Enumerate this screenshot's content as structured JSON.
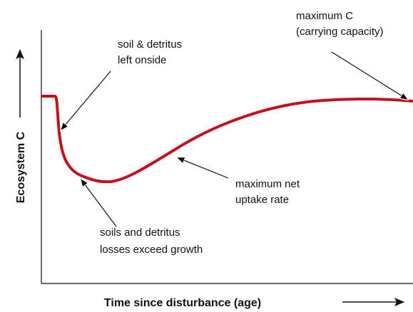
{
  "annotations": [
    {
      "lines": [
        "soil & detritus",
        "left onside"
      ]
    },
    {
      "lines": [
        "maximum C",
        "(carrying capacity)"
      ]
    },
    {
      "lines": [
        "maximum net",
        "uptake rate"
      ]
    },
    {
      "lines": [
        "soils and detritus",
        "losses exceed growth"
      ]
    }
  ],
  "y_axis_label": "Ecosystem C",
  "x_axis_label": "Time since disturbance (age)"
}
